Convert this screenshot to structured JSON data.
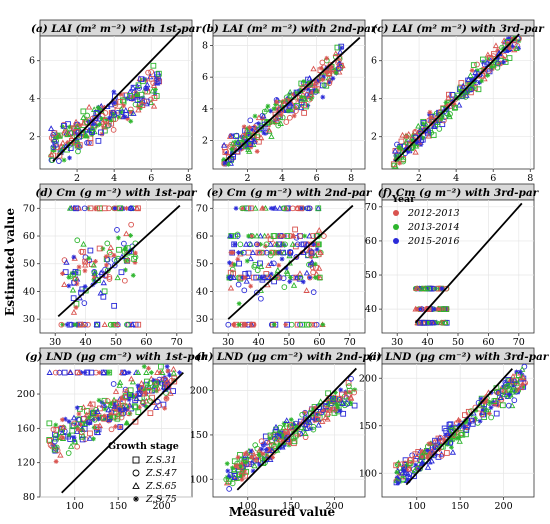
{
  "figure": {
    "xlabel": "Measured value",
    "ylabel": "Estimated value"
  },
  "legends": {
    "year": {
      "title": "Year",
      "items": [
        {
          "label": "2012-2013",
          "color": "#d9534f"
        },
        {
          "label": "2013-2014",
          "color": "#2db52d"
        },
        {
          "label": "2015-2016",
          "color": "#2a2ad8"
        }
      ]
    },
    "growth_stage": {
      "title": "Growth stage",
      "items": [
        {
          "label": "Z.S.31",
          "shape": "square"
        },
        {
          "label": "Z.S.47",
          "shape": "circle"
        },
        {
          "label": "Z.S.65",
          "shape": "triangle"
        },
        {
          "label": "Z.S.75",
          "shape": "asterisk"
        }
      ]
    }
  },
  "chart_data": [
    {
      "type": "scatter",
      "title": "(a) LAI (m² m⁻²) with 1st-par",
      "xlim": [
        0,
        8.2
      ],
      "ylim": [
        0.3,
        7.3
      ],
      "xticks": [
        2,
        4,
        6,
        8
      ],
      "yticks": [
        2,
        4,
        6
      ],
      "one_to_one": [
        0.7,
        7.6
      ],
      "cloud": {
        "x": [
          0.6,
          6.5
        ],
        "slope": 0.6,
        "intercept": 1.0,
        "noise": 0.9,
        "n": 280
      }
    },
    {
      "type": "scatter",
      "title": "(b) LAI (m² m⁻²) with 2nd-par",
      "xlim": [
        0,
        8.8
      ],
      "ylim": [
        0.2,
        8.6
      ],
      "xticks": [
        2,
        4,
        6,
        8
      ],
      "yticks": [
        2,
        4,
        6,
        8
      ],
      "one_to_one": [
        0.7,
        8.5
      ],
      "cloud": {
        "x": [
          0.6,
          7.5
        ],
        "slope": 0.9,
        "intercept": 0.3,
        "noise": 1.0,
        "n": 320
      }
    },
    {
      "type": "scatter",
      "title": "(c) LAI (m² m⁻²) with 3rd-par",
      "xlim": [
        0,
        8.2
      ],
      "ylim": [
        0.3,
        7.3
      ],
      "xticks": [
        2,
        4,
        6,
        8
      ],
      "yticks": [
        2,
        4,
        6
      ],
      "one_to_one": [
        0.7,
        7.4
      ],
      "cloud": {
        "x": [
          0.6,
          7.4
        ],
        "slope": 0.95,
        "intercept": 0.2,
        "noise": 0.6,
        "n": 300
      }
    },
    {
      "type": "scatter",
      "title": "(d) Cm (g m⁻²) with 1st-par",
      "xlim": [
        25,
        75
      ],
      "ylim": [
        25,
        73
      ],
      "xticks": [
        30,
        40,
        50,
        60,
        70
      ],
      "yticks": [
        30,
        40,
        50,
        60,
        70
      ],
      "one_to_one": [
        31,
        71
      ],
      "bands": [
        70,
        28
      ],
      "cloud": {
        "x": [
          32,
          57
        ],
        "slope": 0.3,
        "intercept": 35,
        "noise": 10,
        "n": 120
      }
    },
    {
      "type": "scatter",
      "title": "(e) Cm (g m⁻²) with 2nd-par",
      "xlim": [
        25,
        75
      ],
      "ylim": [
        25,
        73
      ],
      "xticks": [
        30,
        40,
        50,
        60,
        70
      ],
      "yticks": [
        30,
        40,
        50,
        60,
        70
      ],
      "one_to_one": [
        30,
        71
      ],
      "bands": [
        70,
        60,
        57,
        54,
        45,
        28
      ],
      "cloud": {
        "x": [
          30,
          60
        ],
        "slope": 0.2,
        "intercept": 40,
        "noise": 11,
        "n": 100
      }
    },
    {
      "type": "scatter",
      "title": "(f) Cm (g m⁻²) with 3rd-par",
      "xlim": [
        25,
        75
      ],
      "ylim": [
        33,
        72
      ],
      "xticks": [
        30,
        40,
        50,
        60,
        70
      ],
      "yticks": [
        40,
        50,
        60,
        70
      ],
      "one_to_one": [
        36,
        71
      ],
      "bands": [
        46,
        40,
        36
      ],
      "cloud": {
        "x": [
          36,
          46
        ],
        "slope": 0,
        "intercept": 40,
        "noise": 3,
        "n": 0
      }
    },
    {
      "type": "scatter",
      "title": "(g) LND (μg cm⁻²) with 1st-par",
      "xlim": [
        60,
        235
      ],
      "ylim": [
        80,
        235
      ],
      "xticks": [
        100,
        150,
        200
      ],
      "yticks": [
        80,
        120,
        160,
        200
      ],
      "one_to_one": [
        85,
        225
      ],
      "bands": [
        225
      ],
      "cloud": {
        "x": [
          70,
          215
        ],
        "slope": 0.5,
        "intercept": 110,
        "noise": 22,
        "n": 320
      }
    },
    {
      "type": "scatter",
      "title": "(h) LND (μg cm⁻²) with 2nd-par",
      "xlim": [
        60,
        235
      ],
      "ylim": [
        80,
        230
      ],
      "xticks": [
        100,
        150,
        200
      ],
      "yticks": [
        100,
        150,
        200
      ],
      "one_to_one": [
        88,
        225
      ],
      "cloud": {
        "x": [
          75,
          225
        ],
        "slope": 0.65,
        "intercept": 55,
        "noise": 15,
        "n": 320
      }
    },
    {
      "type": "scatter",
      "title": "(i) LND (μg cm⁻²) with 3rd-par",
      "xlim": [
        60,
        235
      ],
      "ylim": [
        75,
        215
      ],
      "xticks": [
        100,
        150,
        200
      ],
      "yticks": [
        100,
        150,
        200
      ],
      "one_to_one": [
        88,
        210
      ],
      "cloud": {
        "x": [
          75,
          225
        ],
        "slope": 0.72,
        "intercept": 40,
        "noise": 13,
        "n": 320
      }
    }
  ]
}
